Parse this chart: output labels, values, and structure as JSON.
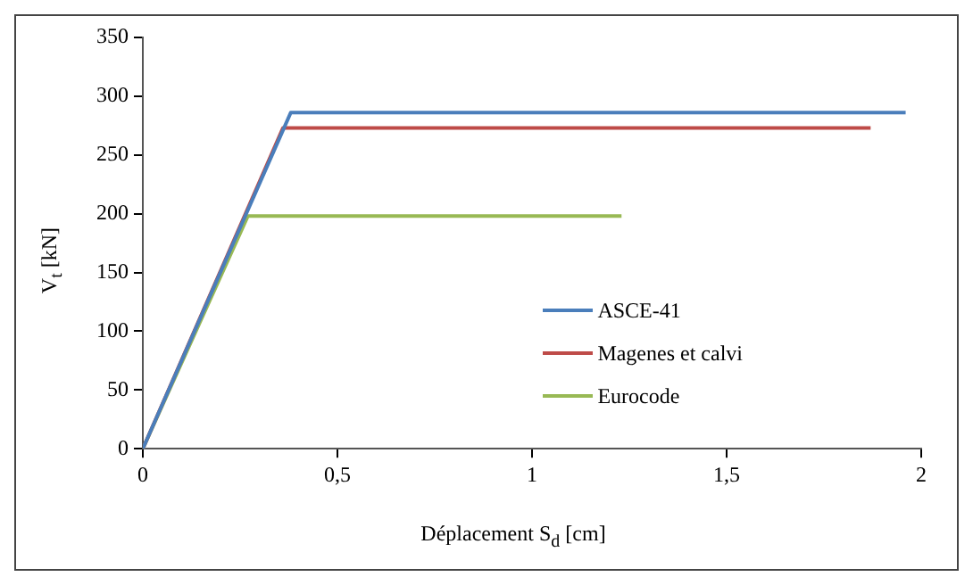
{
  "chart_data": {
    "type": "line",
    "xlabel": "Déplacement S$_{d}$ [cm]",
    "ylabel": "V$_{t}$ [kN]",
    "xlim": [
      0,
      2
    ],
    "xticks": [
      0,
      {
        "value": 0.5,
        "label": "0,5"
      },
      1,
      {
        "value": 1.5,
        "label": "1,5"
      },
      2
    ],
    "ylim": [
      0,
      350
    ],
    "yticks": [
      0,
      50,
      100,
      150,
      200,
      250,
      300,
      350
    ],
    "grid": false,
    "legend": "bottom right",
    "marker": "none",
    "line_style": "solid",
    "series": [
      {
        "name": "ASCE-41",
        "color": "#4a7ebb",
        "x": [
          0,
          0.38,
          1.96
        ],
        "values": [
          0,
          286,
          286
        ]
      },
      {
        "name": "Magenes et calvi",
        "color": "#be4b48",
        "x": [
          0,
          0.36,
          1.87
        ],
        "values": [
          0,
          273,
          273
        ]
      },
      {
        "name": "Eurocode",
        "color": "#98b954",
        "x": [
          0,
          0.27,
          1.23
        ],
        "values": [
          0,
          198,
          198
        ]
      }
    ]
  }
}
